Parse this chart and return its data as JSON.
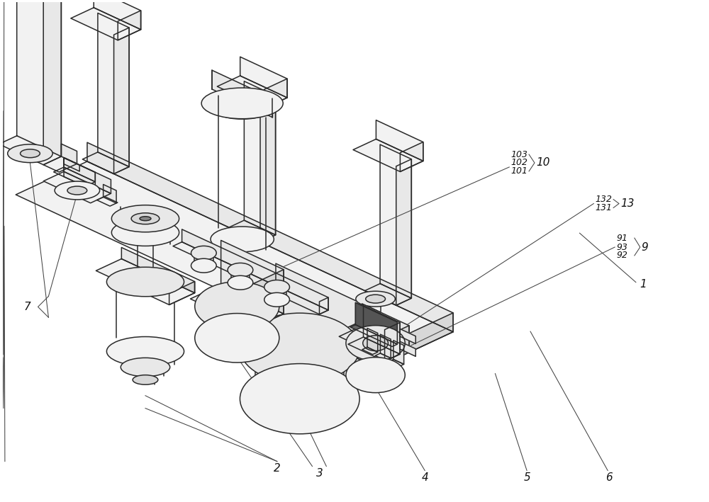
{
  "bg_color": "#ffffff",
  "figure_width": 10.0,
  "figure_height": 7.09,
  "dpi": 100,
  "line_color": "#2a2a2a",
  "fill_light": "#f2f2f2",
  "fill_mid": "#e8e8e8",
  "fill_dark": "#d8d8d8",
  "ann_color": "#111111",
  "ann_fs": 10,
  "leader_lw": 0.75,
  "draw_lw": 1.1
}
